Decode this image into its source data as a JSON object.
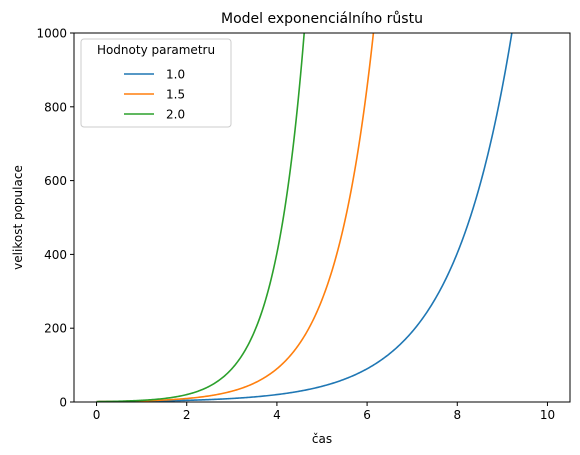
{
  "chart_data": {
    "type": "line",
    "title": "Model exponenciálního růstu",
    "xlabel": "čas",
    "ylabel": "velikost populace",
    "xlim": [
      -0.5,
      10.5
    ],
    "ylim": [
      0,
      1000
    ],
    "xticks": [
      "0",
      "2",
      "4",
      "6",
      "8",
      "10"
    ],
    "yticks": [
      "0",
      "200",
      "400",
      "600",
      "800",
      "1000"
    ],
    "grid": false,
    "legend": {
      "title": "Hodnoty parametru",
      "placement": "top-left"
    },
    "x_range": [
      0,
      10
    ],
    "series": [
      {
        "name": "1.0",
        "color": "#1f77b4",
        "rate": 0.75,
        "initial": 1
      },
      {
        "name": "1.5",
        "color": "#ff7f0e",
        "rate": 1.125,
        "initial": 1
      },
      {
        "name": "2.0",
        "color": "#2ca02c",
        "rate": 1.5,
        "initial": 1
      }
    ]
  }
}
